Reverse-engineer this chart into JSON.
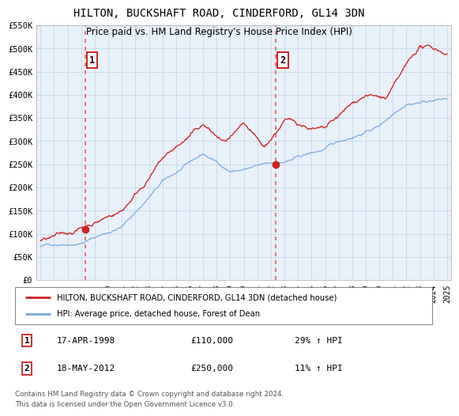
{
  "title": "HILTON, BUCKSHAFT ROAD, CINDERFORD, GL14 3DN",
  "subtitle": "Price paid vs. HM Land Registry's House Price Index (HPI)",
  "xlim": [
    1994.7,
    2025.3
  ],
  "ylim": [
    0,
    550000
  ],
  "yticks": [
    0,
    50000,
    100000,
    150000,
    200000,
    250000,
    300000,
    350000,
    400000,
    450000,
    500000,
    550000
  ],
  "ytick_labels": [
    "£0",
    "£50K",
    "£100K",
    "£150K",
    "£200K",
    "£250K",
    "£300K",
    "£350K",
    "£400K",
    "£450K",
    "£500K",
    "£550K"
  ],
  "xticks": [
    1995,
    1996,
    1997,
    1998,
    1999,
    2000,
    2001,
    2002,
    2003,
    2004,
    2005,
    2006,
    2007,
    2008,
    2009,
    2010,
    2011,
    2012,
    2013,
    2014,
    2015,
    2016,
    2017,
    2018,
    2019,
    2020,
    2021,
    2022,
    2023,
    2024,
    2025
  ],
  "hpi_color": "#7aacdc",
  "price_color": "#cc2222",
  "vline_color": "#dd6666",
  "grid_color": "#c8d8e8",
  "background_color": "#e8f0f8",
  "sale1_year": 1998.29,
  "sale1_price": 110000,
  "sale1_date": "17-APR-1998",
  "sale1_hpi_pct": "29%",
  "sale2_year": 2012.38,
  "sale2_price": 250000,
  "sale2_date": "18-MAY-2012",
  "sale2_hpi_pct": "11%",
  "legend_line1": "HILTON, BUCKSHAFT ROAD, CINDERFORD, GL14 3DN (detached house)",
  "legend_line2": "HPI: Average price, detached house, Forest of Dean",
  "footnote1": "Contains HM Land Registry data © Crown copyright and database right 2024.",
  "footnote2": "This data is licensed under the Open Government Licence v3.0."
}
